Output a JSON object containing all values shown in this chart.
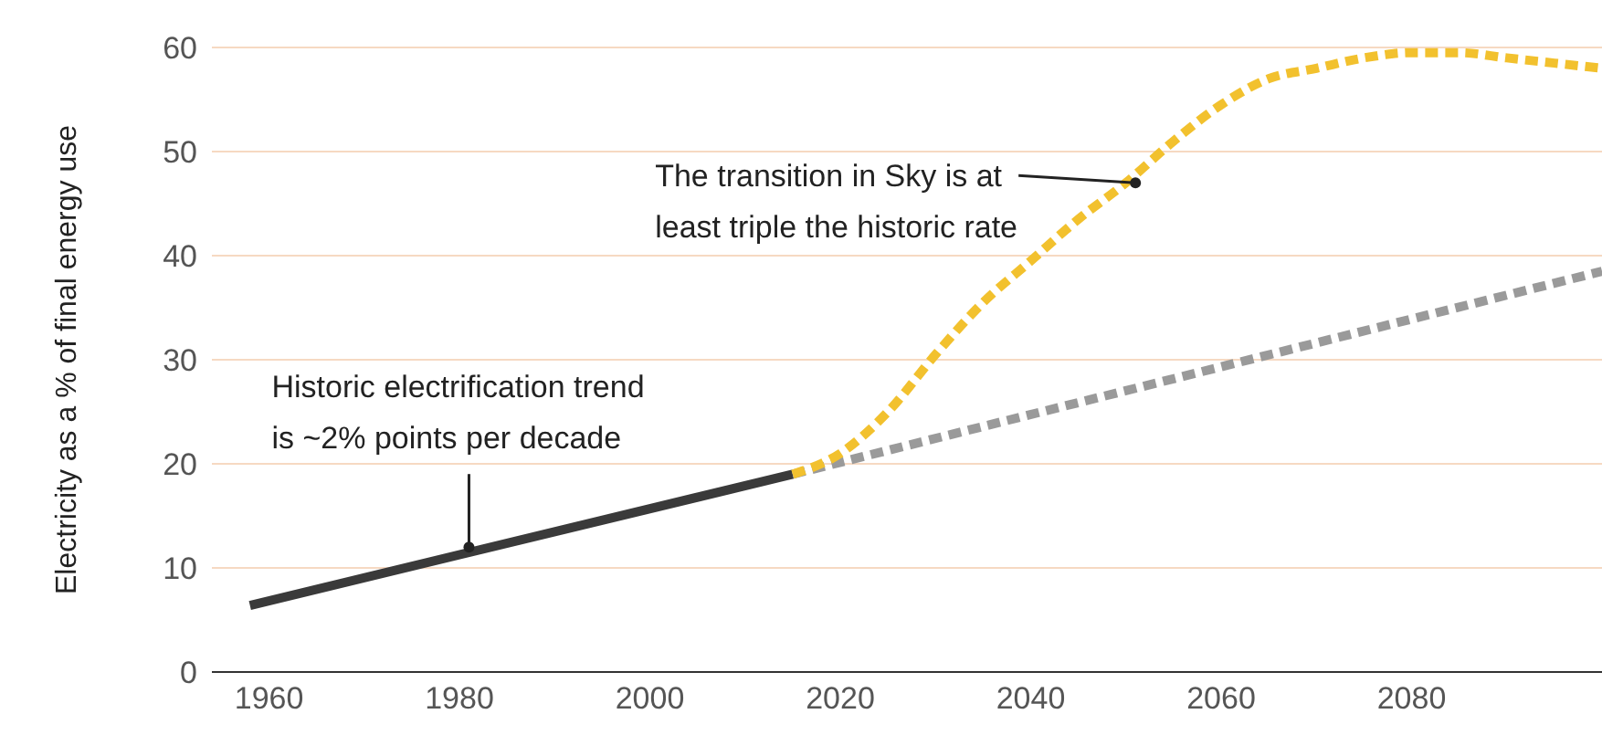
{
  "chart_data": {
    "type": "line",
    "ylabel": "Electricity as a % of final energy use",
    "xlim": [
      1954,
      2100
    ],
    "xticks": [
      1960,
      1980,
      2000,
      2020,
      2040,
      2060,
      2080
    ],
    "ylim": [
      0,
      60
    ],
    "yticks": [
      0,
      10,
      20,
      30,
      40,
      50,
      60
    ],
    "grid": "y",
    "marker": "none",
    "series": [
      {
        "color": "#3a3a3a",
        "line_style": "solid",
        "x": [
          1958,
          2015
        ],
        "values": [
          6.4,
          19
        ]
      },
      {
        "color": "#9a9a9a",
        "line_style": "dashed",
        "x": [
          2015,
          2100
        ],
        "values": [
          19,
          38.5
        ]
      },
      {
        "color": "#f2c12e",
        "line_style": "dashed",
        "x": [
          2015,
          2020,
          2025,
          2030,
          2035,
          2040,
          2045,
          2050,
          2055,
          2060,
          2065,
          2070,
          2075,
          2080,
          2085,
          2090,
          2095,
          2100
        ],
        "values": [
          19,
          21,
          25,
          30.5,
          35.5,
          39.5,
          43.5,
          47,
          51,
          54.5,
          57,
          58,
          59,
          59.5,
          59.5,
          59,
          58.5,
          58
        ]
      }
    ],
    "annotations": [
      {
        "text": "The transition in Sky is at\nleast triple the historic rate",
        "x": 2051,
        "y": 47
      },
      {
        "text": "Historic electrification trend\nis ~2% points per decade",
        "x": 1981,
        "y": 12
      }
    ]
  }
}
